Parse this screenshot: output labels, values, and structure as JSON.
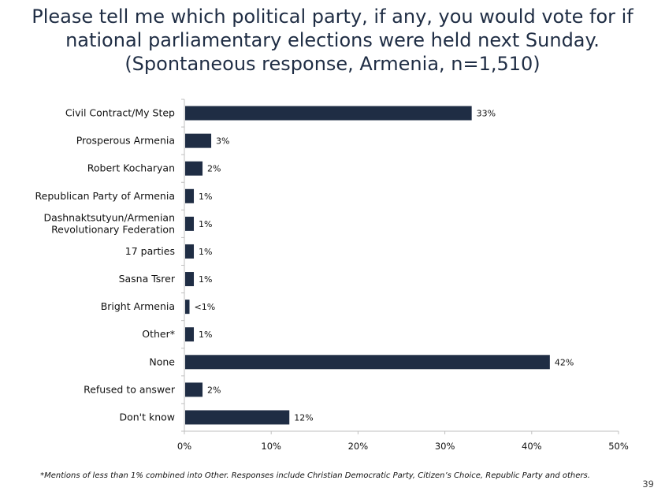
{
  "title_lines": [
    "Please tell me which political party, if any, you would vote for if",
    "national parliamentary elections were held next Sunday.",
    "(Spontaneous response, Armenia, n=1,510)"
  ],
  "footnote": "*Mentions of less than 1% combined into Other. Responses include Christian Democratic Party, Citizen’s Choice, Republic Party and others.",
  "page_number": "39",
  "colors": {
    "bar": "#1f2d44",
    "axis": "#bfbfbf",
    "title": "#1f2d44"
  },
  "chart_data": {
    "type": "bar",
    "orientation": "horizontal",
    "title": "Please tell me which political party, if any, you would vote for if national parliamentary elections were held next Sunday. (Spontaneous response, Armenia, n=1,510)",
    "categories": [
      [
        "Civil Contract/My Step"
      ],
      [
        "Prosperous Armenia"
      ],
      [
        "Robert Kocharyan"
      ],
      [
        "Republican Party of Armenia"
      ],
      [
        "Dashnaktsutyun/Armenian",
        "Revolutionary Federation"
      ],
      [
        "17 parties"
      ],
      [
        "Sasna Tsrer"
      ],
      [
        "Bright Armenia"
      ],
      [
        "Other*"
      ],
      [
        "None"
      ],
      [
        "Refused to answer"
      ],
      [
        "Don't know"
      ]
    ],
    "values": [
      33,
      3,
      2,
      1,
      1,
      1,
      1,
      0.5,
      1,
      42,
      2,
      12
    ],
    "value_labels": [
      "33%",
      "3%",
      "2%",
      "1%",
      "1%",
      "1%",
      "1%",
      "<1%",
      "1%",
      "42%",
      "2%",
      "12%"
    ],
    "xlim": [
      0,
      50
    ],
    "x_ticks": [
      0,
      10,
      20,
      30,
      40,
      50
    ],
    "x_tick_labels": [
      "0%",
      "10%",
      "20%",
      "30%",
      "40%",
      "50%"
    ],
    "grid": false,
    "legend": "none"
  }
}
